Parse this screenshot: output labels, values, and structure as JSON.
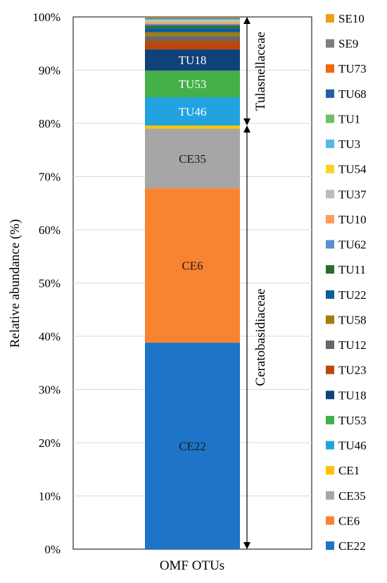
{
  "chart_data": {
    "type": "bar",
    "stacked": true,
    "categories": [
      "OMF OTUs"
    ],
    "xlabel": "OMF OTUs",
    "ylabel": "Relative abundance  (%)",
    "ylim": [
      0,
      100
    ],
    "yticks": [
      0,
      10,
      20,
      30,
      40,
      50,
      60,
      70,
      80,
      90,
      100
    ],
    "ytick_suffix": "%",
    "grid": true,
    "legend": "right",
    "series": [
      {
        "name": "CE22",
        "values": [
          38.8
        ],
        "color": "#1e74c8",
        "label": "CE22",
        "label_color": "#1a1a1a"
      },
      {
        "name": "CE6",
        "values": [
          29.0
        ],
        "color": "#f88331",
        "label": "CE6",
        "label_color": "#1a1a1a"
      },
      {
        "name": "CE35",
        "values": [
          11.2
        ],
        "color": "#a6a6a6",
        "label": "CE35",
        "label_color": "#1a1a1a"
      },
      {
        "name": "CE1",
        "values": [
          0.6
        ],
        "color": "#fdc20a"
      },
      {
        "name": "TU46",
        "values": [
          5.3
        ],
        "color": "#22a3e0",
        "label": "TU46",
        "label_color": "#ffffff"
      },
      {
        "name": "TU53",
        "values": [
          5.0
        ],
        "color": "#43b049",
        "label": "TU53",
        "label_color": "#ffffff"
      },
      {
        "name": "TU18",
        "values": [
          4.0
        ],
        "color": "#10427a",
        "label": "TU18",
        "label_color": "#ffffff"
      },
      {
        "name": "TU23",
        "values": [
          1.6
        ],
        "color": "#bb470d"
      },
      {
        "name": "TU12",
        "values": [
          0.9
        ],
        "color": "#666666"
      },
      {
        "name": "TU58",
        "values": [
          0.7
        ],
        "color": "#a47c0c"
      },
      {
        "name": "TU22",
        "values": [
          0.8
        ],
        "color": "#0c5c98"
      },
      {
        "name": "TU11",
        "values": [
          0.5
        ],
        "color": "#2b6c2c"
      },
      {
        "name": "TU62",
        "values": [
          0.3
        ],
        "color": "#5d8ed3"
      },
      {
        "name": "TU10",
        "values": [
          0.3
        ],
        "color": "#fb9e60"
      },
      {
        "name": "TU37",
        "values": [
          0.3
        ],
        "color": "#bdbdbd"
      },
      {
        "name": "TU54",
        "values": [
          0.1
        ],
        "color": "#fdd324"
      },
      {
        "name": "TU3",
        "values": [
          0.2
        ],
        "color": "#57b7e7"
      },
      {
        "name": "TU1",
        "values": [
          0.1
        ],
        "color": "#6dc067"
      },
      {
        "name": "TU68",
        "values": [
          0.1
        ],
        "color": "#235fa7"
      },
      {
        "name": "TU73",
        "values": [
          0.1
        ],
        "color": "#f2660c"
      },
      {
        "name": "SE9",
        "values": [
          0.05
        ],
        "color": "#7f7f7f"
      },
      {
        "name": "SE10",
        "values": [
          0.05
        ],
        "color": "#e8a01a"
      }
    ],
    "annotations": [
      {
        "text": "Tulasnellaceae",
        "from": 79.6,
        "to": 100
      },
      {
        "text": "Ceratobasidiaceae",
        "from": 0,
        "to": 79.6
      }
    ]
  }
}
